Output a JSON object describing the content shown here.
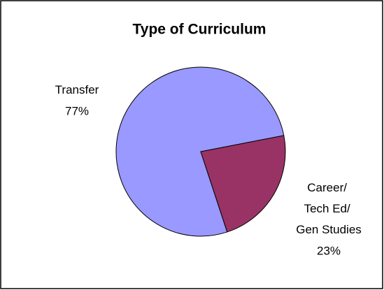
{
  "chart_data": {
    "type": "pie",
    "title": "Type of Curriculum",
    "categories": [
      "Transfer",
      "Career/ Tech Ed/ Gen Studies"
    ],
    "values": [
      77,
      23
    ],
    "value_labels": [
      "77%",
      "23%"
    ],
    "colors": [
      "#9999ff",
      "#993366"
    ]
  }
}
